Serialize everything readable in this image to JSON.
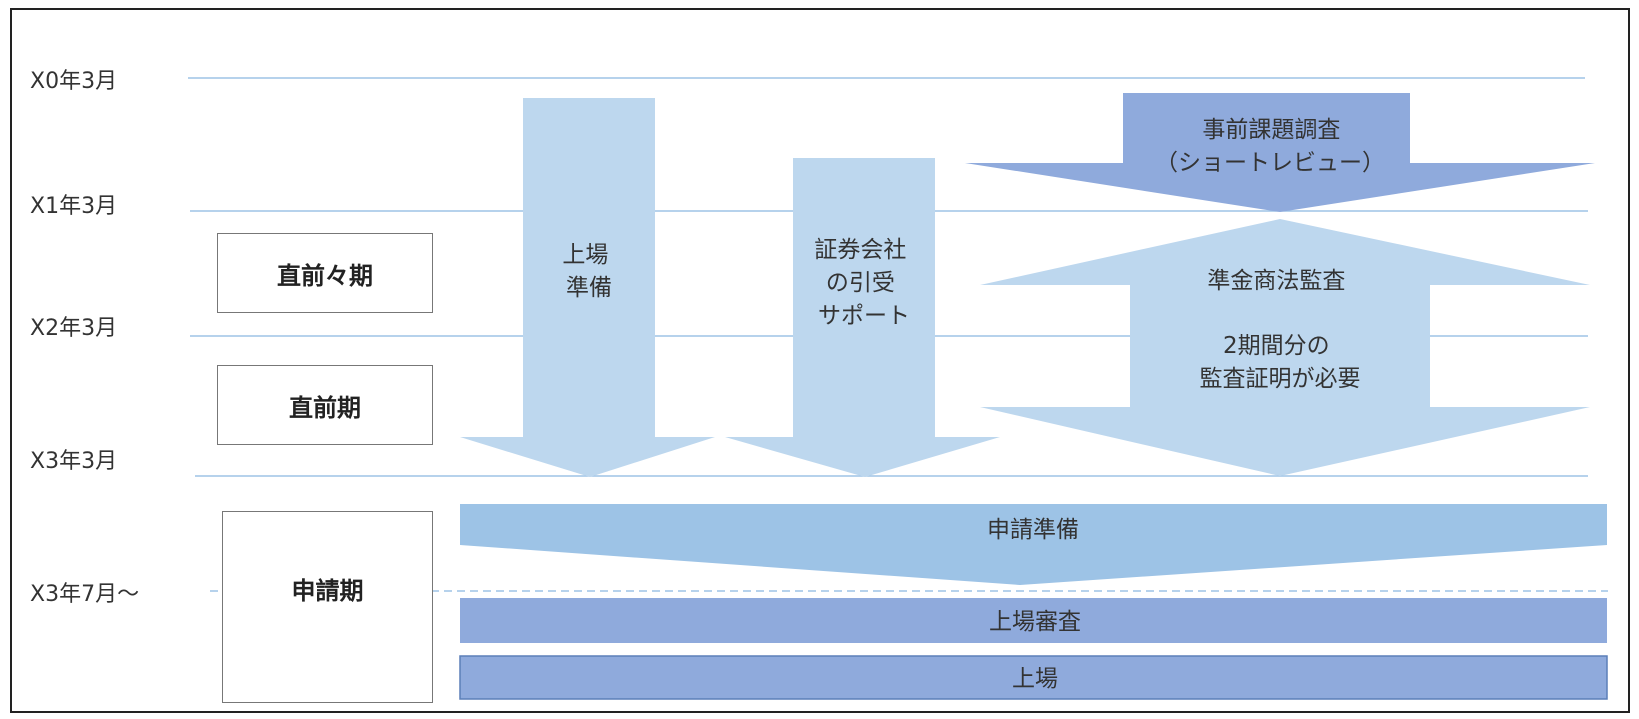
{
  "timeline": [
    {
      "id": "x0",
      "label": "X0年3月"
    },
    {
      "id": "x1",
      "label": "X1年3月"
    },
    {
      "id": "x2",
      "label": "X2年3月"
    },
    {
      "id": "x3",
      "label": "X3年3月"
    },
    {
      "id": "x3july",
      "label": "X3年7月～"
    }
  ],
  "phases": [
    {
      "id": "before-last",
      "label": "直前々期"
    },
    {
      "id": "last",
      "label": "直前期"
    },
    {
      "id": "application",
      "label": "申請期"
    }
  ],
  "arrows": {
    "listing_prep": [
      "上場",
      "準備"
    ],
    "underwriting": [
      "証券会社",
      "の引受",
      "サポート"
    ],
    "short_review": [
      "事前課題調査",
      "（ショートレビュー）"
    ],
    "audit": [
      "準金商法監査",
      "",
      "2期間分の",
      "監査証明が必要"
    ],
    "application_prep": "申請準備",
    "listing_review": "上場審査",
    "listing": "上場"
  },
  "colors": {
    "light_blue": "#bdd7ee",
    "mid_blue": "#9dc3e6",
    "periwinkle": "#8faadc",
    "line_blue": "#9dc3e6"
  }
}
